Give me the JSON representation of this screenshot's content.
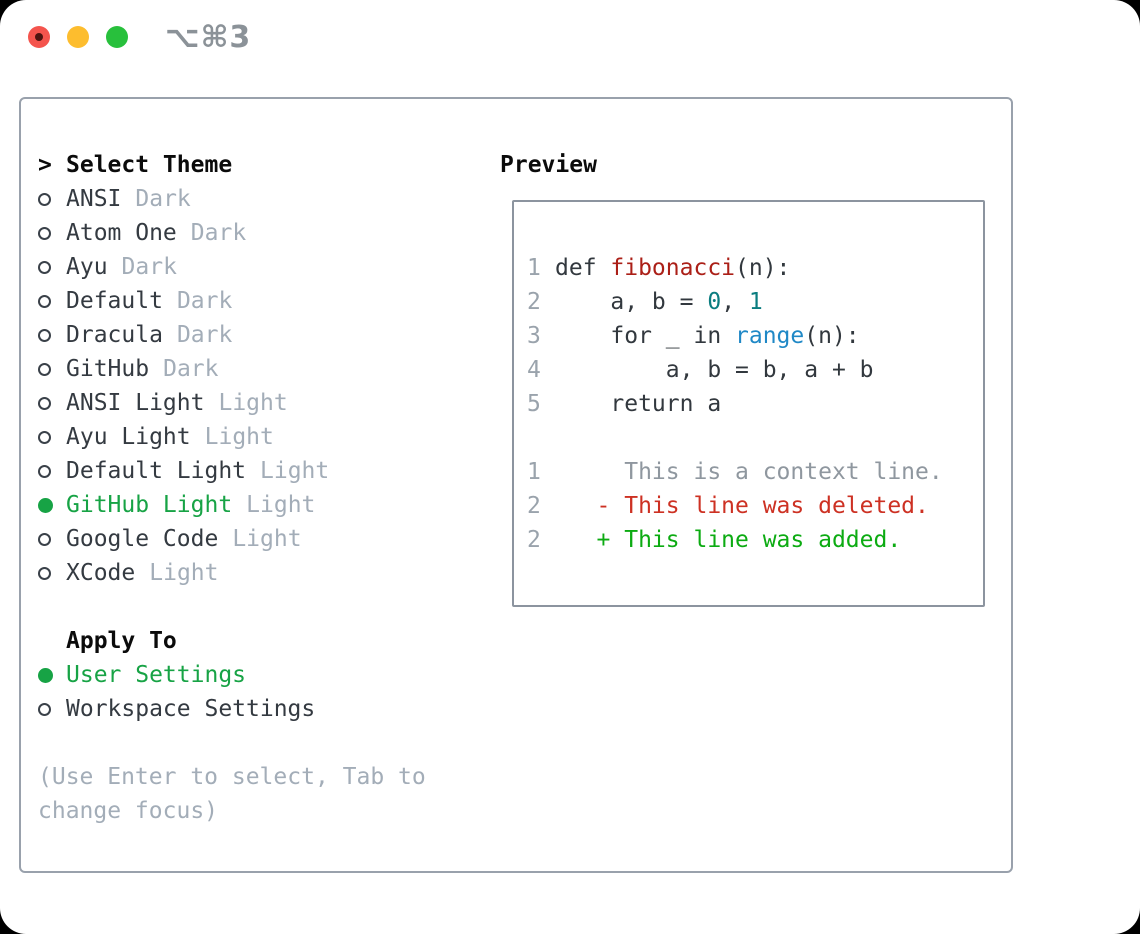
{
  "titlebar": {
    "shortcut_label": "⌥⌘3",
    "controls": [
      {
        "icon": "close-icon",
        "color": "#f4544d"
      },
      {
        "icon": "minimize-icon",
        "color": "#fdbd2e"
      },
      {
        "icon": "zoom-icon",
        "color": "#28c03c"
      }
    ]
  },
  "theme_list": {
    "prompt": ">",
    "title": "Select Theme",
    "items": [
      {
        "name": "ANSI",
        "tag": "Dark",
        "selected": false
      },
      {
        "name": "Atom One",
        "tag": "Dark",
        "selected": false
      },
      {
        "name": "Ayu",
        "tag": "Dark",
        "selected": false
      },
      {
        "name": "Default",
        "tag": "Dark",
        "selected": false
      },
      {
        "name": "Dracula",
        "tag": "Dark",
        "selected": false
      },
      {
        "name": "GitHub",
        "tag": "Dark",
        "selected": false
      },
      {
        "name": "ANSI Light",
        "tag": "Light",
        "selected": false
      },
      {
        "name": "Ayu Light",
        "tag": "Light",
        "selected": false
      },
      {
        "name": "Default Light",
        "tag": "Light",
        "selected": false
      },
      {
        "name": "GitHub Light",
        "tag": "Light",
        "selected": true
      },
      {
        "name": "Google Code",
        "tag": "Light",
        "selected": false
      },
      {
        "name": "XCode",
        "tag": "Light",
        "selected": false
      }
    ]
  },
  "apply_to": {
    "title": "Apply To",
    "items": [
      {
        "name": "User Settings",
        "selected": true
      },
      {
        "name": "Workspace Settings",
        "selected": false
      }
    ]
  },
  "hint": "(Use Enter to select, Tab to change focus)",
  "preview": {
    "title": "Preview",
    "lines": [
      {
        "num": "1",
        "segments": [
          [
            "def ",
            "plain"
          ],
          [
            "fibonacci",
            "func"
          ],
          [
            "(n):",
            "plain"
          ]
        ]
      },
      {
        "num": "2",
        "segments": [
          [
            "    a, b = ",
            "plain"
          ],
          [
            "0",
            "number"
          ],
          [
            ", ",
            "plain"
          ],
          [
            "1",
            "number"
          ]
        ]
      },
      {
        "num": "3",
        "segments": [
          [
            "    for _ in ",
            "plain"
          ],
          [
            "range",
            "builtin"
          ],
          [
            "(n):",
            "plain"
          ]
        ]
      },
      {
        "num": "4",
        "segments": [
          [
            "        a, b = b, a + b",
            "plain"
          ]
        ]
      },
      {
        "num": "5",
        "segments": [
          [
            "    return a",
            "plain"
          ]
        ]
      },
      {
        "num": "",
        "segments": []
      },
      {
        "num": "1",
        "segments": [
          [
            "     This is a context line.",
            "context"
          ]
        ]
      },
      {
        "num": "2",
        "segments": [
          [
            "   - This line was deleted.",
            "deleted"
          ]
        ]
      },
      {
        "num": "2",
        "segments": [
          [
            "   + This line was added.",
            "added"
          ]
        ]
      }
    ]
  },
  "colors": {
    "selected_green": "#17a345",
    "panel_border": "#99a1ac",
    "name_text": "#343a41",
    "tag_text": "#a3adb8",
    "hint_text": "#a3adb8",
    "line_number": "#9aa3ac",
    "code_plain": "#32383e",
    "code_function_red": "#ab1f17",
    "code_number_teal": "#0b7d80",
    "code_builtin_blue": "#1f88c6",
    "diff_context": "#8f979f",
    "diff_deleted": "#cd3123",
    "diff_added": "#0cab12",
    "traffic_red": "#f4544d",
    "traffic_yellow": "#fdbd2e",
    "traffic_green": "#28c03c"
  }
}
